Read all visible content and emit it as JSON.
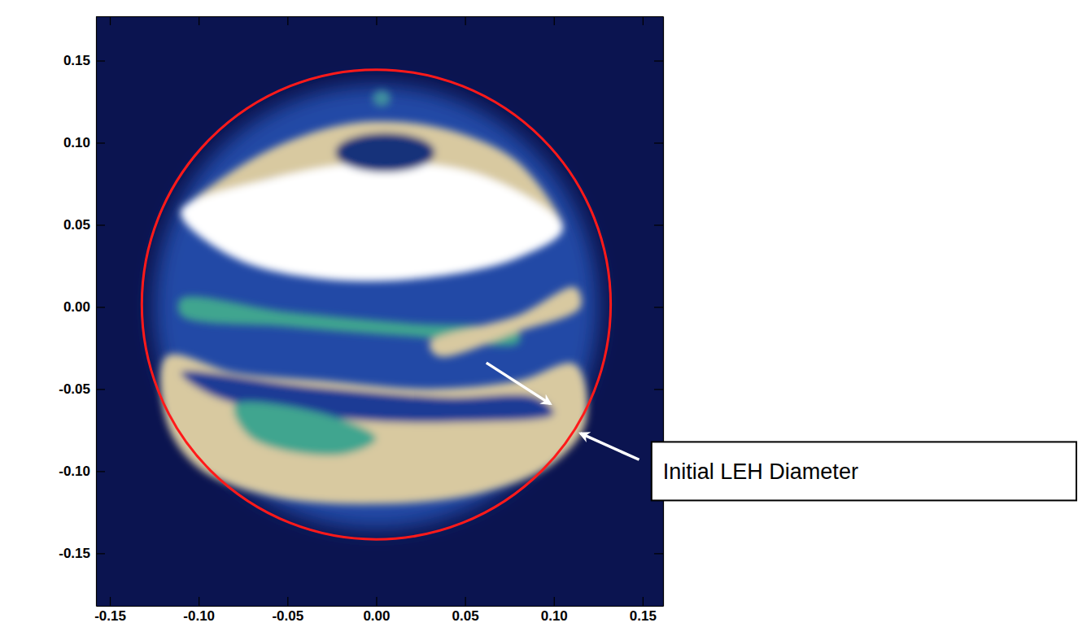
{
  "chart_data": {
    "type": "image",
    "xlim": [
      -0.1578,
      0.1615
    ],
    "ylim": [
      -0.182,
      0.177
    ],
    "xticks": [
      -0.15,
      {
        "value": -0.1,
        "label": "-0.10"
      },
      -0.05,
      {
        "value": 0,
        "label": "0.00"
      },
      0.05,
      {
        "value": 0.1,
        "label": "0.10"
      },
      0.15
    ],
    "yticks": [
      -0.15,
      {
        "value": -0.1,
        "label": "-0.10"
      },
      -0.05,
      {
        "value": 0,
        "label": "0.00"
      },
      0.05,
      {
        "value": 0.1,
        "label": "0.10"
      },
      0.15
    ],
    "image_glow": {
      "cx": 0.0,
      "cy": 0.0,
      "rx": 0.125,
      "ry": 0.135,
      "color": "#2148a6"
    },
    "image_regions": [
      {
        "color": "#d8c9a0",
        "x": [
          -0.118,
          -0.08,
          -0.03,
          0.03,
          0.08,
          0.112,
          0.118,
          0.1,
          0.06,
          0.0,
          -0.06,
          -0.1,
          -0.118
        ],
        "y": [
          -0.03,
          -0.04,
          -0.045,
          -0.05,
          -0.045,
          -0.035,
          -0.07,
          -0.095,
          -0.113,
          -0.12,
          -0.115,
          -0.098,
          -0.07
        ]
      },
      {
        "color": "#1a3a95",
        "x": [
          -0.11,
          -0.04,
          0.04,
          0.09,
          0.1,
          0.05,
          -0.02,
          -0.09
        ],
        "y": [
          -0.04,
          -0.048,
          -0.055,
          -0.055,
          -0.065,
          -0.07,
          -0.068,
          -0.055
        ]
      },
      {
        "color": "#3fa58f",
        "x": [
          -0.08,
          -0.03,
          0.0,
          -0.02,
          -0.07
        ],
        "y": [
          -0.06,
          -0.065,
          -0.08,
          -0.09,
          -0.08
        ]
      },
      {
        "color": "#d8c9a0",
        "x": [
          -0.11,
          -0.07,
          -0.03,
          0.0,
          0.04,
          0.08,
          0.105,
          0.06,
          0.0,
          -0.06
        ],
        "y": [
          0.058,
          0.09,
          0.108,
          0.113,
          0.108,
          0.088,
          0.048,
          0.075,
          0.085,
          0.078
        ]
      },
      {
        "color": "#ffffff",
        "x": [
          -0.11,
          -0.06,
          0.0,
          0.06,
          0.105,
          0.08,
          0.03,
          -0.03,
          -0.08
        ],
        "y": [
          0.058,
          0.078,
          0.088,
          0.08,
          0.048,
          0.03,
          0.018,
          0.017,
          0.03
        ]
      },
      {
        "color": "#3fa58f",
        "x": [
          -0.11,
          -0.05,
          0.02,
          0.08,
          0.08,
          0.02,
          -0.05,
          -0.11
        ],
        "y": [
          0.005,
          -0.003,
          -0.01,
          -0.015,
          -0.022,
          -0.018,
          -0.012,
          -0.005
        ]
      },
      {
        "color": "#d8c9a0",
        "x": [
          0.03,
          0.08,
          0.112,
          0.115,
          0.08,
          0.035
        ],
        "y": [
          -0.022,
          -0.005,
          0.012,
          0.0,
          -0.015,
          -0.03
        ]
      }
    ],
    "image_spots": [
      {
        "cx": 0.005,
        "cy": 0.094,
        "rx": 0.028,
        "ry": 0.012,
        "color": "#16307a"
      },
      {
        "cx": 0.003,
        "cy": 0.127,
        "rx": 0.005,
        "ry": 0.005,
        "color": "#3f8f9f"
      }
    ],
    "circle": {
      "cx": 0.0,
      "cy": 0.0015,
      "rx": 0.132,
      "ry": 0.143,
      "color": "#ff1a1a"
    },
    "arrows": [
      {
        "x": [
          0.062,
          0.098
        ],
        "y": [
          -0.034,
          -0.059
        ]
      },
      {
        "x": [
          0.148,
          0.115
        ],
        "y": [
          -0.093,
          -0.077
        ]
      }
    ],
    "annotations": [
      {
        "text": "Initial LEH Diameter",
        "x": 0.155,
        "y": -0.1
      }
    ]
  }
}
